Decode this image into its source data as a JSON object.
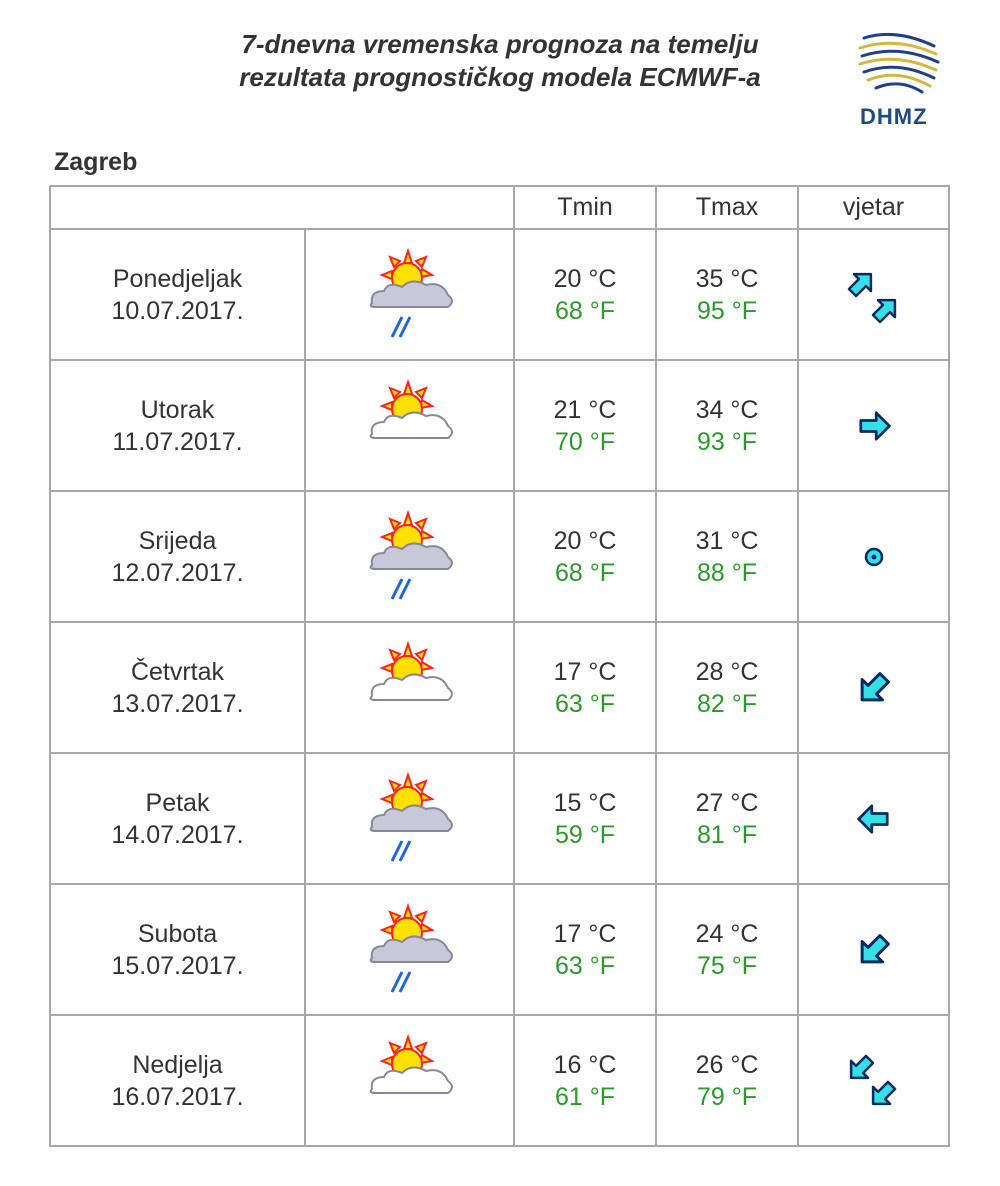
{
  "header": {
    "title_line1": "7-dnevna vremenska prognoza na temelju",
    "title_line2": "rezultata prognostičkog modela ECMWF-a",
    "logo_text": "DHMZ"
  },
  "city": "Zagreb",
  "columns": {
    "blank": "",
    "tmin": "Tmin",
    "tmax": "Tmax",
    "wind": "vjetar"
  },
  "days": [
    {
      "name": "Ponedjeljak",
      "date": "10.07.2017.",
      "weather_icon": "sun-cloud-rain-icon",
      "tmin_c": "20 °C",
      "tmin_f": "68 °F",
      "tmax_c": "35 °C",
      "tmax_f": "95 °F",
      "wind_icon": "double-arrow-northeast-icon"
    },
    {
      "name": "Utorak",
      "date": "11.07.2017.",
      "weather_icon": "sun-cloud-icon",
      "tmin_c": "21 °C",
      "tmin_f": "70 °F",
      "tmax_c": "34 °C",
      "tmax_f": "93 °F",
      "wind_icon": "arrow-east-icon"
    },
    {
      "name": "Srijeda",
      "date": "12.07.2017.",
      "weather_icon": "sun-cloud-rain-icon",
      "tmin_c": "20 °C",
      "tmin_f": "68 °F",
      "tmax_c": "31 °C",
      "tmax_f": "88 °F",
      "wind_icon": "calm-circle-icon"
    },
    {
      "name": "Četvrtak",
      "date": "13.07.2017.",
      "weather_icon": "sun-cloud-icon",
      "tmin_c": "17 °C",
      "tmin_f": "63 °F",
      "tmax_c": "28 °C",
      "tmax_f": "82 °F",
      "wind_icon": "arrow-southwest-icon"
    },
    {
      "name": "Petak",
      "date": "14.07.2017.",
      "weather_icon": "sun-cloud-rain-icon",
      "tmin_c": "15 °C",
      "tmin_f": "59 °F",
      "tmax_c": "27 °C",
      "tmax_f": "81 °F",
      "wind_icon": "arrow-west-icon"
    },
    {
      "name": "Subota",
      "date": "15.07.2017.",
      "weather_icon": "sun-cloud-rain-icon",
      "tmin_c": "17 °C",
      "tmin_f": "63 °F",
      "tmax_c": "24 °C",
      "tmax_f": "75 °F",
      "wind_icon": "arrow-southwest-icon"
    },
    {
      "name": "Nedjelja",
      "date": "16.07.2017.",
      "weather_icon": "sun-cloud-icon",
      "tmin_c": "16 °C",
      "tmin_f": "61 °F",
      "tmax_c": "26 °C",
      "tmax_f": "79 °F",
      "wind_icon": "double-arrow-southwest-icon"
    }
  ],
  "colors": {
    "celsius": "#333333",
    "fahrenheit": "#2a9a2a",
    "wind_arrow": "#33e0e8",
    "sun": "#ffe000",
    "cloud": "#c8c8d8",
    "border": "#a8a8a8"
  }
}
